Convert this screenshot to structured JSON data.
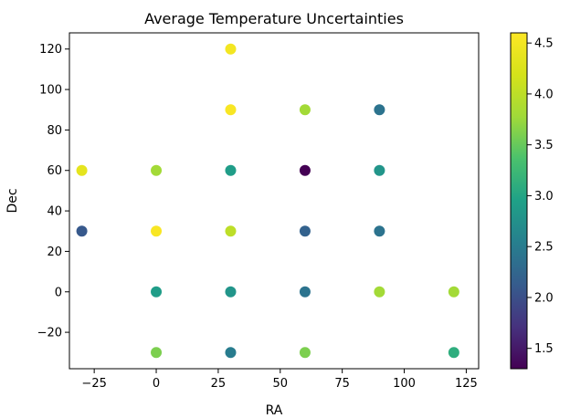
{
  "chart_data": {
    "type": "scatter",
    "title": "Average Temperature Uncertainties",
    "xlabel": "RA",
    "ylabel": "Dec",
    "xlim": [
      -35,
      130
    ],
    "ylim": [
      -38,
      128
    ],
    "xticks": [
      -25,
      0,
      25,
      50,
      75,
      100,
      125
    ],
    "yticks": [
      -20,
      0,
      20,
      40,
      60,
      80,
      100,
      120
    ],
    "xtick_labels": [
      "−25",
      "0",
      "25",
      "50",
      "75",
      "100",
      "125"
    ],
    "ytick_labels": [
      "−20",
      "0",
      "20",
      "40",
      "60",
      "80",
      "100",
      "120"
    ],
    "grid": false,
    "colormap": "viridis",
    "colorbar": {
      "min": 1.3,
      "max": 4.6,
      "ticks": [
        1.5,
        2.0,
        2.5,
        3.0,
        3.5,
        4.0,
        4.5
      ],
      "tick_labels": [
        "1.5",
        "2.0",
        "2.5",
        "3.0",
        "3.5",
        "4.0",
        "4.5"
      ]
    },
    "points": [
      {
        "x": 30,
        "y": 120,
        "value": 4.5
      },
      {
        "x": 30,
        "y": 90,
        "value": 4.55
      },
      {
        "x": 60,
        "y": 90,
        "value": 3.8
      },
      {
        "x": 90,
        "y": 90,
        "value": 2.4
      },
      {
        "x": -30,
        "y": 60,
        "value": 4.35
      },
      {
        "x": 0,
        "y": 60,
        "value": 3.8
      },
      {
        "x": 30,
        "y": 60,
        "value": 2.9
      },
      {
        "x": 60,
        "y": 60,
        "value": 1.3
      },
      {
        "x": 90,
        "y": 60,
        "value": 2.8
      },
      {
        "x": -30,
        "y": 30,
        "value": 2.1
      },
      {
        "x": 0,
        "y": 30,
        "value": 4.55
      },
      {
        "x": 30,
        "y": 30,
        "value": 4.0
      },
      {
        "x": 60,
        "y": 30,
        "value": 2.2
      },
      {
        "x": 90,
        "y": 30,
        "value": 2.4
      },
      {
        "x": 0,
        "y": 0,
        "value": 2.9
      },
      {
        "x": 30,
        "y": 0,
        "value": 2.8
      },
      {
        "x": 60,
        "y": 0,
        "value": 2.4
      },
      {
        "x": 90,
        "y": 0,
        "value": 3.8
      },
      {
        "x": 120,
        "y": 0,
        "value": 3.8
      },
      {
        "x": 0,
        "y": -30,
        "value": 3.6
      },
      {
        "x": 30,
        "y": -30,
        "value": 2.5
      },
      {
        "x": 60,
        "y": -30,
        "value": 3.6
      },
      {
        "x": 120,
        "y": -30,
        "value": 3.1
      }
    ]
  }
}
